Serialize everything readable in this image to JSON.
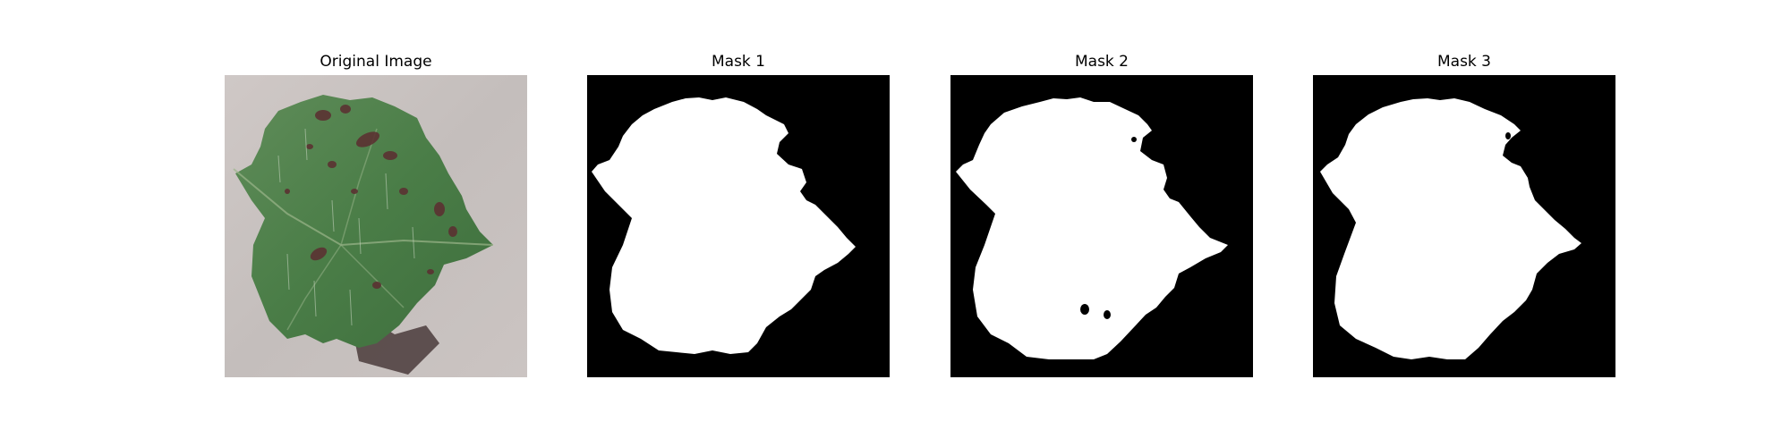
{
  "figure": {
    "panels": [
      {
        "title": "Original Image",
        "kind": "photo",
        "subject": "leaf-with-spots"
      },
      {
        "title": "Mask 1",
        "kind": "mask"
      },
      {
        "title": "Mask 2",
        "kind": "mask"
      },
      {
        "title": "Mask 3",
        "kind": "mask"
      }
    ]
  },
  "colors": {
    "background": "#ffffff",
    "mask_foreground": "#ffffff",
    "mask_background": "#000000",
    "leaf_green": "#4f7f4a",
    "leaf_dark": "#2f5b36",
    "spot_brown": "#5b3232",
    "surface_gray": "#c9c2bf"
  }
}
